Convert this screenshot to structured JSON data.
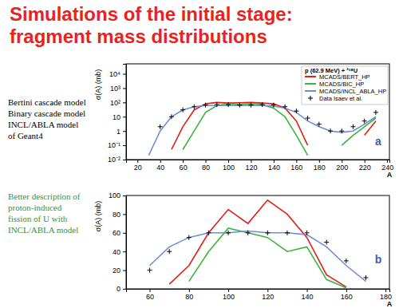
{
  "slide": {
    "title": [
      "Simulations of the initial stage:",
      "fragment mass distributions"
    ],
    "left_text": [
      "Bertini cascade model",
      "Binary cascade model",
      "INCL/ABLA model",
      "of Geant4"
    ],
    "note": [
      "Better description of",
      "proton-induced",
      "fission of U with",
      "INCL/ABLA model"
    ]
  },
  "chart_data": [
    {
      "type": "line",
      "x": [
        20,
        30,
        40,
        50,
        60,
        70,
        80,
        90,
        100,
        110,
        120,
        130,
        140,
        150,
        160,
        170,
        180,
        190,
        200,
        210,
        220,
        230,
        240
      ],
      "xlim": [
        10,
        242
      ],
      "xticks": [
        20,
        40,
        60,
        80,
        100,
        120,
        140,
        160,
        180,
        200,
        220,
        240
      ],
      "ylim": [
        0.01,
        50000
      ],
      "yticks": [
        {
          "value": 0.01,
          "label": "10⁻²"
        },
        {
          "value": 0.1,
          "label": "10⁻¹"
        },
        1,
        10,
        {
          "value": 100,
          "label": "10²"
        },
        {
          "value": 1000,
          "label": "10³"
        },
        {
          "value": 10000,
          "label": "10⁴"
        }
      ],
      "log": "y",
      "x_label": "A",
      "y_label": "σ(A) (mb)",
      "legend": "upper right",
      "annotations": [
        "p (62.9 MeV) + ²³⁸U",
        "a"
      ],
      "series": [
        {
          "name": "MCADS/BERT_HP",
          "color": "#e0201b",
          "line_style": "solid",
          "values": [
            null,
            null,
            null,
            0.05,
            2,
            30,
            80,
            100,
            90,
            95,
            100,
            90,
            80,
            40,
            5,
            0.1,
            null,
            null,
            null,
            null,
            0.5,
            5,
            null
          ]
        },
        {
          "name": "MCADS/BIC_HP",
          "color": "#3cb43c",
          "line_style": "solid",
          "values": [
            null,
            null,
            null,
            null,
            0.05,
            1,
            20,
            60,
            80,
            70,
            80,
            70,
            40,
            10,
            0.5,
            0.02,
            null,
            null,
            0.1,
            0.5,
            2,
            8,
            null
          ]
        },
        {
          "name": "MCADS/INCL_ABLA_HP",
          "color": "#6f8fd0",
          "line_style": "solid",
          "values": [
            null,
            0.02,
            1,
            10,
            30,
            50,
            60,
            60,
            60,
            60,
            60,
            60,
            55,
            40,
            20,
            5,
            2,
            1,
            0.8,
            1,
            3,
            10,
            null
          ]
        },
        {
          "name": "Data Isaev et al.",
          "color": "#000000",
          "type": "scatter",
          "marker": "cross",
          "values": [
            null,
            null,
            2,
            10,
            30,
            50,
            65,
            70,
            70,
            65,
            65,
            70,
            65,
            50,
            25,
            8,
            3,
            1,
            1,
            2,
            5,
            20,
            null
          ]
        }
      ]
    },
    {
      "type": "line",
      "x": [
        50,
        60,
        70,
        80,
        90,
        100,
        110,
        120,
        130,
        140,
        150,
        160,
        170,
        180
      ],
      "xlim": [
        48,
        182
      ],
      "xticks": [
        60,
        80,
        100,
        120,
        140,
        160,
        180
      ],
      "ylim": [
        0,
        100
      ],
      "yticks": [
        0,
        20,
        40,
        60,
        80,
        100
      ],
      "x_label": "A",
      "y_label": "σ(A) (mb)",
      "annotations": [
        "b"
      ],
      "series": [
        {
          "color": "#e0201b",
          "line_style": "solid",
          "values": [
            null,
            null,
            5,
            25,
            60,
            85,
            70,
            95,
            80,
            55,
            15,
            2,
            null,
            null
          ]
        },
        {
          "color": "#3cb43c",
          "line_style": "solid",
          "values": [
            null,
            null,
            null,
            8,
            40,
            65,
            60,
            55,
            40,
            45,
            10,
            1,
            null,
            null
          ]
        },
        {
          "color": "#6f8fd0",
          "line_style": "solid",
          "values": [
            null,
            25,
            45,
            55,
            60,
            60,
            62,
            60,
            60,
            58,
            45,
            25,
            8,
            null
          ]
        },
        {
          "color": "#000000",
          "type": "scatter",
          "marker": "cross",
          "values": [
            null,
            20,
            40,
            55,
            60,
            60,
            60,
            60,
            60,
            60,
            50,
            30,
            12,
            null
          ]
        }
      ]
    }
  ]
}
